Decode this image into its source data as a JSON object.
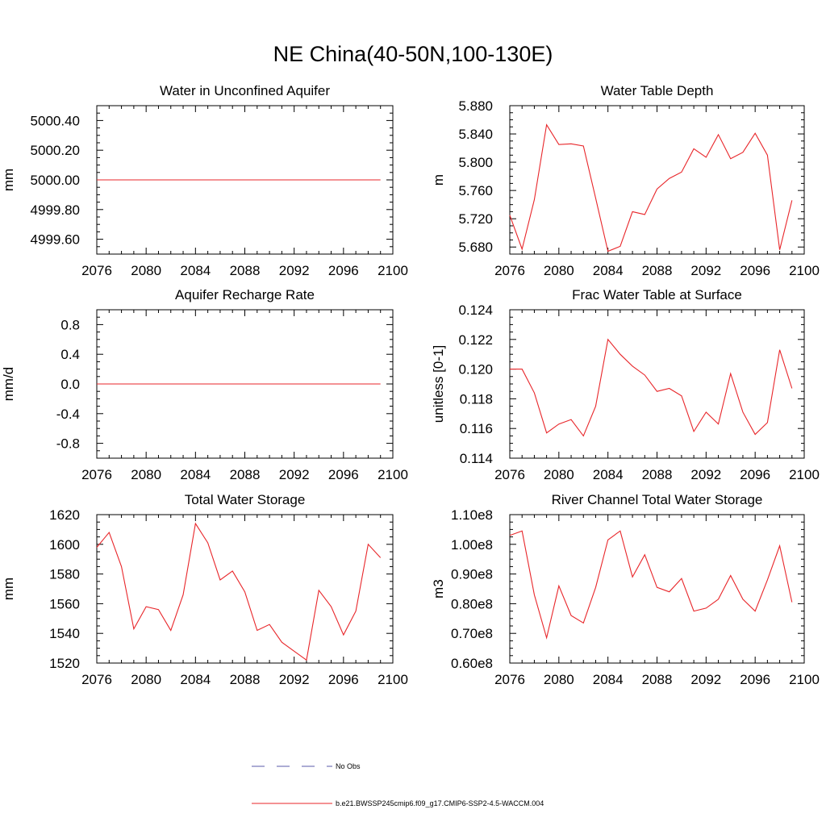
{
  "figure": {
    "title": "NE China(40-50N,100-130E)"
  },
  "legend": {
    "entries": [
      {
        "label": "No Obs",
        "style": "dashed",
        "color": "#5a5aa8"
      },
      {
        "label": "b.e21.BWSSP245cmip6.f09_g17.CMIP6-SSP2-4.5-WACCM.004",
        "style": "solid",
        "color": "#e8262a"
      }
    ]
  },
  "chart_data": [
    {
      "type": "line",
      "title": "Water in Unconfined Aquifer",
      "ylabel": "mm",
      "xlim": [
        2076,
        2100
      ],
      "ylim": [
        4999.5,
        5000.5
      ],
      "xticks": [
        2076,
        2080,
        2084,
        2088,
        2092,
        2096,
        2100
      ],
      "yticks": [
        {
          "value": 4999.6,
          "label": "4999.60"
        },
        {
          "value": 4999.8,
          "label": "4999.80"
        },
        {
          "value": 5000.0,
          "label": "5000.00"
        },
        {
          "value": 5000.2,
          "label": "5000.20"
        },
        {
          "value": 5000.4,
          "label": "5000.40"
        }
      ],
      "x": [
        2076,
        2077,
        2078,
        2079,
        2080,
        2081,
        2082,
        2083,
        2084,
        2085,
        2086,
        2087,
        2088,
        2089,
        2090,
        2091,
        2092,
        2093,
        2094,
        2095,
        2096,
        2097,
        2098,
        2099
      ],
      "series": [
        {
          "values": [
            5000,
            5000,
            5000,
            5000,
            5000,
            5000,
            5000,
            5000,
            5000,
            5000,
            5000,
            5000,
            5000,
            5000,
            5000,
            5000,
            5000,
            5000,
            5000,
            5000,
            5000,
            5000,
            5000,
            5000
          ],
          "color": "#e8262a"
        }
      ]
    },
    {
      "type": "line",
      "title": "Water Table Depth",
      "ylabel": "m",
      "xlim": [
        2076,
        2100
      ],
      "ylim": [
        5.67,
        5.88
      ],
      "xticks": [
        2076,
        2080,
        2084,
        2088,
        2092,
        2096,
        2100
      ],
      "yticks": [
        {
          "value": 5.68,
          "label": "5.680"
        },
        {
          "value": 5.72,
          "label": "5.720"
        },
        {
          "value": 5.76,
          "label": "5.760"
        },
        {
          "value": 5.8,
          "label": "5.800"
        },
        {
          "value": 5.84,
          "label": "5.840"
        },
        {
          "value": 5.88,
          "label": "5.880"
        }
      ],
      "x": [
        2076,
        2077,
        2078,
        2079,
        2080,
        2081,
        2082,
        2083,
        2084,
        2085,
        2086,
        2087,
        2088,
        2089,
        2090,
        2091,
        2092,
        2093,
        2094,
        2095,
        2096,
        2097,
        2098,
        2099
      ],
      "series": [
        {
          "values": [
            5.725,
            5.677,
            5.747,
            5.853,
            5.825,
            5.826,
            5.823,
            5.749,
            5.674,
            5.681,
            5.73,
            5.726,
            5.762,
            5.777,
            5.786,
            5.819,
            5.807,
            5.839,
            5.805,
            5.814,
            5.841,
            5.81,
            5.676,
            5.746
          ],
          "color": "#e8262a"
        }
      ]
    },
    {
      "type": "line",
      "title": "Aquifer Recharge Rate",
      "ylabel": "mm/d",
      "xlim": [
        2076,
        2100
      ],
      "ylim": [
        -1.0,
        1.0
      ],
      "xticks": [
        2076,
        2080,
        2084,
        2088,
        2092,
        2096,
        2100
      ],
      "yticks": [
        {
          "value": -0.8,
          "label": "-0.8"
        },
        {
          "value": -0.4,
          "label": "-0.4"
        },
        {
          "value": 0.0,
          "label": "0.0"
        },
        {
          "value": 0.4,
          "label": "0.4"
        },
        {
          "value": 0.8,
          "label": "0.8"
        }
      ],
      "x": [
        2076,
        2077,
        2078,
        2079,
        2080,
        2081,
        2082,
        2083,
        2084,
        2085,
        2086,
        2087,
        2088,
        2089,
        2090,
        2091,
        2092,
        2093,
        2094,
        2095,
        2096,
        2097,
        2098,
        2099
      ],
      "series": [
        {
          "values": [
            0,
            0,
            0,
            0,
            0,
            0,
            0,
            0,
            0,
            0,
            0,
            0,
            0,
            0,
            0,
            0,
            0,
            0,
            0,
            0,
            0,
            0,
            0,
            0
          ],
          "color": "#e8262a"
        }
      ]
    },
    {
      "type": "line",
      "title": "Frac Water Table at Surface",
      "ylabel": "unitless [0-1]",
      "xlim": [
        2076,
        2100
      ],
      "ylim": [
        0.114,
        0.124
      ],
      "xticks": [
        2076,
        2080,
        2084,
        2088,
        2092,
        2096,
        2100
      ],
      "yticks": [
        {
          "value": 0.114,
          "label": "0.114"
        },
        {
          "value": 0.116,
          "label": "0.116"
        },
        {
          "value": 0.118,
          "label": "0.118"
        },
        {
          "value": 0.12,
          "label": "0.120"
        },
        {
          "value": 0.122,
          "label": "0.122"
        },
        {
          "value": 0.124,
          "label": "0.124"
        }
      ],
      "x": [
        2076,
        2077,
        2078,
        2079,
        2080,
        2081,
        2082,
        2083,
        2084,
        2085,
        2086,
        2087,
        2088,
        2089,
        2090,
        2091,
        2092,
        2093,
        2094,
        2095,
        2096,
        2097,
        2098,
        2099
      ],
      "series": [
        {
          "values": [
            0.12,
            0.12,
            0.1184,
            0.1157,
            0.1163,
            0.1166,
            0.1155,
            0.1175,
            0.122,
            0.121,
            0.1202,
            0.1196,
            0.1185,
            0.1187,
            0.1182,
            0.1158,
            0.1171,
            0.1163,
            0.1197,
            0.1171,
            0.1156,
            0.1164,
            0.1213,
            0.1187
          ],
          "color": "#e8262a"
        }
      ]
    },
    {
      "type": "line",
      "title": "Total Water Storage",
      "ylabel": "mm",
      "xlim": [
        2076,
        2100
      ],
      "ylim": [
        1520,
        1620
      ],
      "xticks": [
        2076,
        2080,
        2084,
        2088,
        2092,
        2096,
        2100
      ],
      "yticks": [
        {
          "value": 1520,
          "label": "1520"
        },
        {
          "value": 1540,
          "label": "1540"
        },
        {
          "value": 1560,
          "label": "1560"
        },
        {
          "value": 1580,
          "label": "1580"
        },
        {
          "value": 1600,
          "label": "1600"
        },
        {
          "value": 1620,
          "label": "1620"
        }
      ],
      "x": [
        2076,
        2077,
        2078,
        2079,
        2080,
        2081,
        2082,
        2083,
        2084,
        2085,
        2086,
        2087,
        2088,
        2089,
        2090,
        2091,
        2092,
        2093,
        2094,
        2095,
        2096,
        2097,
        2098,
        2099
      ],
      "series": [
        {
          "values": [
            1598,
            1608,
            1585,
            1543,
            1558,
            1556,
            1542,
            1566,
            1614,
            1601,
            1576,
            1582,
            1568,
            1542,
            1546,
            1534,
            1528,
            1522,
            1569,
            1558,
            1539,
            1555,
            1600,
            1591
          ],
          "color": "#e8262a"
        }
      ]
    },
    {
      "type": "line",
      "title": "River Channel Total Water Storage",
      "ylabel": "m3",
      "xlim": [
        2076,
        2100
      ],
      "ylim": [
        60000000.0,
        110000000.0
      ],
      "xticks": [
        2076,
        2080,
        2084,
        2088,
        2092,
        2096,
        2100
      ],
      "yticks": [
        {
          "value": 60000000.0,
          "label": "0.60e8"
        },
        {
          "value": 70000000.0,
          "label": "0.70e8"
        },
        {
          "value": 80000000.0,
          "label": "0.80e8"
        },
        {
          "value": 90000000.0,
          "label": "0.90e8"
        },
        {
          "value": 100000000.0,
          "label": "1.00e8"
        },
        {
          "value": 110000000.0,
          "label": "1.10e8"
        }
      ],
      "x": [
        2076,
        2077,
        2078,
        2079,
        2080,
        2081,
        2082,
        2083,
        2084,
        2085,
        2086,
        2087,
        2088,
        2089,
        2090,
        2091,
        2092,
        2093,
        2094,
        2095,
        2096,
        2097,
        2098,
        2099
      ],
      "series": [
        {
          "values": [
            103000000.0,
            104500000.0,
            83000000.0,
            68500000.0,
            86000000.0,
            76000000.0,
            73500000.0,
            85500000.0,
            101500000.0,
            104500000.0,
            89000000.0,
            96500000.0,
            85500000.0,
            84000000.0,
            88500000.0,
            77500000.0,
            78500000.0,
            81500000.0,
            89500000.0,
            81500000.0,
            77500000.0,
            88000000.0,
            99500000.0,
            80500000.0
          ],
          "color": "#e8262a"
        }
      ]
    }
  ]
}
